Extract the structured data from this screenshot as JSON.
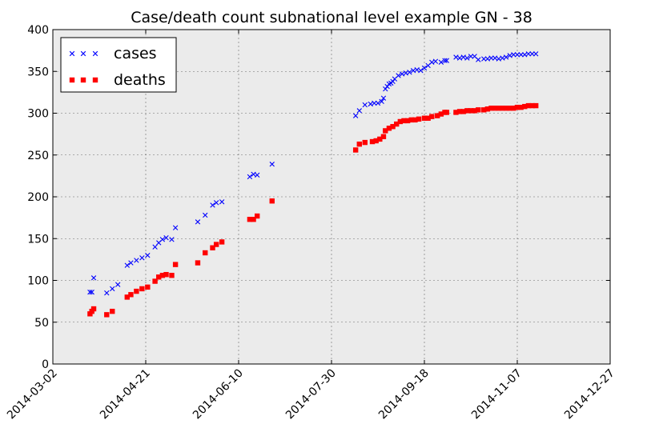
{
  "chart_data": {
    "type": "scatter",
    "title": "Case/death count subnational level example GN - 38",
    "xlabel": "",
    "ylabel": "",
    "ylim": [
      0,
      400
    ],
    "xlim": [
      "2014-03-02",
      "2014-12-27"
    ],
    "y_ticks": [
      "0",
      "50",
      "100",
      "150",
      "200",
      "250",
      "300",
      "350",
      "400"
    ],
    "x_ticks": [
      "2014-03-02",
      "2014-04-21",
      "2014-06-10",
      "2014-07-30",
      "2014-09-18",
      "2014-11-07",
      "2014-12-27"
    ],
    "grid": true,
    "legend_position": "top-left",
    "background": "#ebebeb",
    "series": [
      {
        "name": "cases",
        "marker": "x",
        "color": "#0000ff",
        "points": [
          [
            "2014-03-22",
            86
          ],
          [
            "2014-03-23",
            86
          ],
          [
            "2014-03-24",
            103
          ],
          [
            "2014-03-31",
            85
          ],
          [
            "2014-04-03",
            90
          ],
          [
            "2014-04-06",
            95
          ],
          [
            "2014-04-11",
            118
          ],
          [
            "2014-04-13",
            121
          ],
          [
            "2014-04-16",
            124
          ],
          [
            "2014-04-19",
            127
          ],
          [
            "2014-04-22",
            130
          ],
          [
            "2014-04-26",
            140
          ],
          [
            "2014-04-28",
            145
          ],
          [
            "2014-04-30",
            149
          ],
          [
            "2014-05-02",
            151
          ],
          [
            "2014-05-05",
            149
          ],
          [
            "2014-05-07",
            163
          ],
          [
            "2014-05-19",
            170
          ],
          [
            "2014-05-23",
            178
          ],
          [
            "2014-05-27",
            190
          ],
          [
            "2014-05-29",
            193
          ],
          [
            "2014-06-01",
            194
          ],
          [
            "2014-06-16",
            224
          ],
          [
            "2014-06-18",
            227
          ],
          [
            "2014-06-20",
            226
          ],
          [
            "2014-06-28",
            239
          ],
          [
            "2014-08-12",
            297
          ],
          [
            "2014-08-14",
            303
          ],
          [
            "2014-08-17",
            310
          ],
          [
            "2014-08-20",
            311
          ],
          [
            "2014-08-22",
            312
          ],
          [
            "2014-08-24",
            312
          ],
          [
            "2014-08-26",
            314
          ],
          [
            "2014-08-27",
            318
          ],
          [
            "2014-08-28",
            329
          ],
          [
            "2014-08-29",
            332
          ],
          [
            "2014-08-30",
            335
          ],
          [
            "2014-08-31",
            336
          ],
          [
            "2014-09-01",
            338
          ],
          [
            "2014-09-02",
            341
          ],
          [
            "2014-09-04",
            345
          ],
          [
            "2014-09-06",
            347
          ],
          [
            "2014-09-08",
            348
          ],
          [
            "2014-09-10",
            349
          ],
          [
            "2014-09-12",
            351
          ],
          [
            "2014-09-14",
            352
          ],
          [
            "2014-09-16",
            351
          ],
          [
            "2014-09-18",
            354
          ],
          [
            "2014-09-20",
            357
          ],
          [
            "2014-09-22",
            361
          ],
          [
            "2014-09-24",
            362
          ],
          [
            "2014-09-27",
            361
          ],
          [
            "2014-09-29",
            363
          ],
          [
            "2014-09-30",
            363
          ],
          [
            "2014-10-05",
            367
          ],
          [
            "2014-10-07",
            366
          ],
          [
            "2014-10-09",
            367
          ],
          [
            "2014-10-11",
            366
          ],
          [
            "2014-10-13",
            368
          ],
          [
            "2014-10-15",
            368
          ],
          [
            "2014-10-17",
            364
          ],
          [
            "2014-10-20",
            365
          ],
          [
            "2014-10-22",
            365
          ],
          [
            "2014-10-24",
            366
          ],
          [
            "2014-10-26",
            366
          ],
          [
            "2014-10-28",
            365
          ],
          [
            "2014-10-30",
            366
          ],
          [
            "2014-11-01",
            367
          ],
          [
            "2014-11-03",
            369
          ],
          [
            "2014-11-05",
            370
          ],
          [
            "2014-11-07",
            370
          ],
          [
            "2014-11-09",
            370
          ],
          [
            "2014-11-11",
            370
          ],
          [
            "2014-11-13",
            371
          ],
          [
            "2014-11-15",
            371
          ],
          [
            "2014-11-17",
            371
          ]
        ]
      },
      {
        "name": "deaths",
        "marker": "square",
        "color": "#ff0000",
        "points": [
          [
            "2014-03-22",
            60
          ],
          [
            "2014-03-23",
            63
          ],
          [
            "2014-03-24",
            66
          ],
          [
            "2014-03-31",
            59
          ],
          [
            "2014-04-03",
            63
          ],
          [
            "2014-04-11",
            80
          ],
          [
            "2014-04-13",
            83
          ],
          [
            "2014-04-16",
            87
          ],
          [
            "2014-04-19",
            90
          ],
          [
            "2014-04-22",
            92
          ],
          [
            "2014-04-26",
            99
          ],
          [
            "2014-04-28",
            104
          ],
          [
            "2014-04-30",
            106
          ],
          [
            "2014-05-02",
            107
          ],
          [
            "2014-05-05",
            106
          ],
          [
            "2014-05-07",
            119
          ],
          [
            "2014-05-19",
            121
          ],
          [
            "2014-05-23",
            133
          ],
          [
            "2014-05-27",
            139
          ],
          [
            "2014-05-29",
            143
          ],
          [
            "2014-06-01",
            146
          ],
          [
            "2014-06-16",
            173
          ],
          [
            "2014-06-18",
            173
          ],
          [
            "2014-06-20",
            177
          ],
          [
            "2014-06-28",
            195
          ],
          [
            "2014-08-12",
            256
          ],
          [
            "2014-08-14",
            263
          ],
          [
            "2014-08-17",
            265
          ],
          [
            "2014-08-21",
            266
          ],
          [
            "2014-08-23",
            267
          ],
          [
            "2014-08-25",
            269
          ],
          [
            "2014-08-27",
            272
          ],
          [
            "2014-08-28",
            279
          ],
          [
            "2014-08-30",
            282
          ],
          [
            "2014-09-01",
            284
          ],
          [
            "2014-09-03",
            287
          ],
          [
            "2014-09-05",
            290
          ],
          [
            "2014-09-07",
            291
          ],
          [
            "2014-09-09",
            291
          ],
          [
            "2014-09-11",
            292
          ],
          [
            "2014-09-13",
            292
          ],
          [
            "2014-09-15",
            293
          ],
          [
            "2014-09-18",
            294
          ],
          [
            "2014-09-20",
            294
          ],
          [
            "2014-09-22",
            296
          ],
          [
            "2014-09-25",
            297
          ],
          [
            "2014-09-27",
            299
          ],
          [
            "2014-09-29",
            301
          ],
          [
            "2014-09-30",
            301
          ],
          [
            "2014-10-05",
            301
          ],
          [
            "2014-10-07",
            302
          ],
          [
            "2014-10-09",
            302
          ],
          [
            "2014-10-11",
            303
          ],
          [
            "2014-10-13",
            303
          ],
          [
            "2014-10-15",
            303
          ],
          [
            "2014-10-17",
            304
          ],
          [
            "2014-10-20",
            304
          ],
          [
            "2014-10-22",
            305
          ],
          [
            "2014-10-24",
            306
          ],
          [
            "2014-10-26",
            306
          ],
          [
            "2014-10-28",
            306
          ],
          [
            "2014-10-30",
            306
          ],
          [
            "2014-11-01",
            306
          ],
          [
            "2014-11-03",
            306
          ],
          [
            "2014-11-05",
            306
          ],
          [
            "2014-11-07",
            307
          ],
          [
            "2014-11-09",
            307
          ],
          [
            "2014-11-11",
            308
          ],
          [
            "2014-11-13",
            309
          ],
          [
            "2014-11-15",
            309
          ],
          [
            "2014-11-17",
            309
          ]
        ]
      }
    ]
  }
}
